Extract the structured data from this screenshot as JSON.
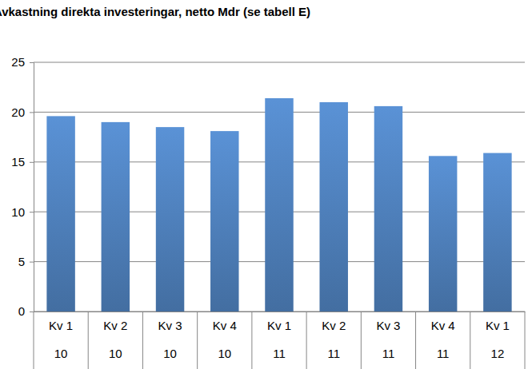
{
  "chart_data": {
    "type": "bar",
    "title": "Avkastning direkta investeringar, netto Mdr (se tabell E)",
    "categories": [
      [
        "Kv 1",
        "10"
      ],
      [
        "Kv 2",
        "10"
      ],
      [
        "Kv 3",
        "10"
      ],
      [
        "Kv 4",
        "10"
      ],
      [
        "Kv 1",
        "11"
      ],
      [
        "Kv 2",
        "11"
      ],
      [
        "Kv 3",
        "11"
      ],
      [
        "Kv 4",
        "11"
      ],
      [
        "Kv 1",
        "12"
      ]
    ],
    "values": [
      19.6,
      19.0,
      18.5,
      18.1,
      21.4,
      21.0,
      20.6,
      15.6,
      15.9
    ],
    "color": "#4f81bd",
    "ylim": [
      0,
      25
    ],
    "yticks": [
      0,
      5,
      10,
      15,
      20,
      25
    ],
    "grid": true
  }
}
